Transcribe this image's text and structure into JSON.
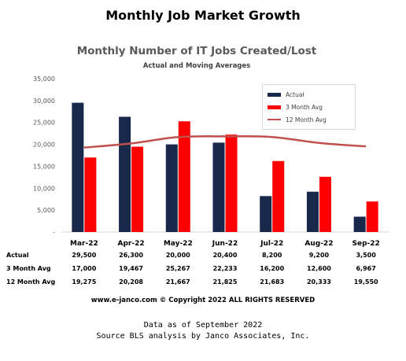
{
  "page": {
    "outer_title": "Monthly Job Market Growth",
    "copyright": "www.e-janco.com © Copyright 2022 ALL RIGHTS RESERVED",
    "footer_line1": "Data as of September 2022",
    "footer_line2": "Source BLS analysis by Janco Associates, Inc."
  },
  "colors": {
    "actual": "#17284a",
    "three_month": "#ff0000",
    "twelve_month": "#c0504d",
    "axis_text": "#595959",
    "gridline": "#e6e6e6"
  },
  "chart_data": {
    "type": "bar",
    "title": "Monthly Number of IT Jobs Created/Lost",
    "subtitle": "Actual and Moving Averages",
    "categories": [
      "Mar-22",
      "Apr-22",
      "May-22",
      "Jun-22",
      "Jul-22",
      "Aug-22",
      "Sep-22"
    ],
    "series": [
      {
        "name": "Actual",
        "type": "bar",
        "values": [
          29500,
          26300,
          20000,
          20400,
          8200,
          9200,
          3500
        ]
      },
      {
        "name": "3 Month Avg",
        "type": "bar",
        "values": [
          17000,
          19467,
          25267,
          22233,
          16200,
          12600,
          6967
        ]
      },
      {
        "name": "12 Month Avg",
        "type": "line",
        "values": [
          19275,
          20208,
          21667,
          21825,
          21683,
          20333,
          19550
        ]
      }
    ],
    "y_ticks": [
      "-",
      "5,000",
      "10,000",
      "15,000",
      "20,000",
      "25,000",
      "30,000",
      "35,000"
    ],
    "ylim": [
      0,
      35000
    ],
    "grid": false,
    "legend_position": "top-right",
    "table": {
      "row_labels": [
        "Actual",
        "3 Month Avg",
        "12 Month Avg"
      ],
      "rows": [
        [
          "29,500",
          "26,300",
          "20,000",
          "20,400",
          "8,200",
          "9,200",
          "3,500"
        ],
        [
          "17,000",
          "19,467",
          "25,267",
          "22,233",
          "16,200",
          "12,600",
          "6,967"
        ],
        [
          "19,275",
          "20,208",
          "21,667",
          "21,825",
          "21,683",
          "20,333",
          "19,550"
        ]
      ]
    }
  }
}
